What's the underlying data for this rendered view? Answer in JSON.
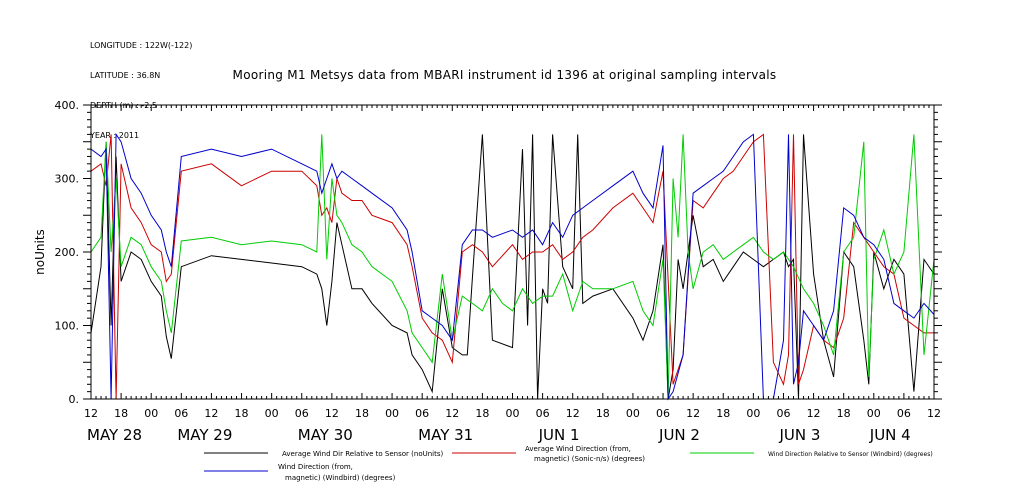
{
  "meta": {
    "longitude": "LONGITUDE : 122W(-122)",
    "latitude": "LATITUDE : 36.8N",
    "depth": "DEPTH (m) : -2.5",
    "year": "YEAR : 2011"
  },
  "chart_data": {
    "type": "line",
    "title": "Mooring M1 Metsys data from MBARI instrument id 1396 at original sampling intervals",
    "xlabel": "",
    "ylabel": "noUnits",
    "ylim": [
      0,
      400
    ],
    "yticks": [
      "0.",
      "100.",
      "200.",
      "300.",
      "400."
    ],
    "xlim": [
      0,
      168
    ],
    "x_hour_ticks": [
      "12",
      "18",
      "00",
      "06",
      "12",
      "18",
      "00",
      "06",
      "12",
      "18",
      "00",
      "06",
      "12",
      "18",
      "00",
      "06",
      "12",
      "18",
      "00",
      "06",
      "12",
      "18",
      "00",
      "06",
      "12",
      "18",
      "00",
      "06",
      "12"
    ],
    "date_labels": [
      {
        "text": "MAY 28",
        "x": 0
      },
      {
        "text": "MAY 29",
        "x": 18
      },
      {
        "text": "MAY 30",
        "x": 42
      },
      {
        "text": "MAY 31",
        "x": 66
      },
      {
        "text": "JUN  1",
        "x": 90
      },
      {
        "text": "JUN  2",
        "x": 114
      },
      {
        "text": "JUN  3",
        "x": 138
      },
      {
        "text": "JUN  4",
        "x": 156
      }
    ],
    "series": [
      {
        "name": "Average Wind Dir Relative to Sensor (noUnits)",
        "color": "#000000",
        "x": [
          0,
          2,
          3,
          4,
          5,
          6,
          8,
          10,
          12,
          14,
          15,
          16,
          18,
          24,
          30,
          36,
          42,
          45,
          46,
          47,
          48,
          49,
          50,
          52,
          54,
          56,
          60,
          63,
          64,
          66,
          68,
          70,
          72,
          74,
          75,
          76,
          78,
          80,
          84,
          86,
          87,
          88,
          89,
          90,
          91,
          92,
          94,
          96,
          97,
          98,
          100,
          104,
          108,
          110,
          112,
          114,
          115,
          116,
          117,
          118,
          120,
          122,
          124,
          126,
          128,
          130,
          132,
          134,
          136,
          138,
          139,
          140,
          141,
          142,
          144,
          146,
          148,
          150,
          152,
          154,
          155,
          156,
          158,
          160,
          162,
          164,
          166,
          168
        ],
        "y": [
          90,
          180,
          350,
          100,
          330,
          160,
          200,
          190,
          160,
          140,
          85,
          55,
          180,
          195,
          190,
          185,
          180,
          170,
          150,
          100,
          160,
          240,
          210,
          150,
          150,
          130,
          100,
          90,
          60,
          40,
          10,
          150,
          70,
          60,
          60,
          165,
          360,
          80,
          70,
          340,
          100,
          360,
          0,
          150,
          130,
          360,
          180,
          150,
          360,
          130,
          140,
          150,
          110,
          80,
          120,
          210,
          0,
          40,
          190,
          150,
          250,
          180,
          190,
          160,
          180,
          200,
          190,
          180,
          190,
          200,
          180,
          190,
          0,
          360,
          170,
          80,
          30,
          200,
          180,
          80,
          20,
          200,
          150,
          190,
          170,
          10,
          190,
          170
        ]
      },
      {
        "name": "Average Wind Direction (from, magnetic) (Sonic-n/s) (degrees)",
        "color": "#cc0000",
        "x": [
          0,
          2,
          3,
          4,
          5,
          6,
          8,
          10,
          12,
          14,
          15,
          16,
          18,
          24,
          30,
          36,
          42,
          45,
          46,
          47,
          48,
          49,
          50,
          52,
          54,
          56,
          60,
          63,
          64,
          66,
          68,
          70,
          72,
          74,
          76,
          78,
          80,
          84,
          86,
          88,
          90,
          92,
          94,
          96,
          98,
          100,
          104,
          108,
          110,
          112,
          114,
          116,
          118,
          120,
          122,
          124,
          126,
          128,
          130,
          132,
          134,
          136,
          138,
          139,
          140,
          141,
          142,
          144,
          146,
          148,
          150,
          152,
          154,
          156,
          158,
          160,
          162,
          164,
          166,
          168
        ],
        "y": [
          310,
          320,
          290,
          360,
          0,
          320,
          260,
          240,
          210,
          200,
          160,
          170,
          310,
          320,
          290,
          310,
          310,
          290,
          250,
          260,
          240,
          300,
          280,
          270,
          270,
          250,
          240,
          210,
          180,
          110,
          90,
          80,
          50,
          200,
          210,
          200,
          180,
          210,
          190,
          200,
          200,
          210,
          190,
          200,
          220,
          230,
          260,
          280,
          260,
          240,
          310,
          20,
          60,
          270,
          260,
          280,
          300,
          310,
          330,
          350,
          360,
          50,
          20,
          60,
          360,
          20,
          40,
          100,
          80,
          70,
          110,
          240,
          220,
          200,
          180,
          170,
          110,
          100,
          90,
          90
        ]
      },
      {
        "name": "Wind Direction Relative to Sensor (Windbird) (degrees)",
        "color": "#00cc00",
        "x": [
          0,
          2,
          3,
          4,
          5,
          6,
          8,
          10,
          12,
          14,
          15,
          16,
          18,
          24,
          30,
          36,
          42,
          45,
          46,
          47,
          48,
          49,
          50,
          52,
          54,
          56,
          60,
          63,
          64,
          66,
          68,
          70,
          72,
          74,
          76,
          78,
          80,
          82,
          84,
          86,
          88,
          90,
          92,
          94,
          96,
          98,
          100,
          104,
          108,
          110,
          112,
          114,
          115,
          116,
          117,
          118,
          119,
          120,
          122,
          124,
          126,
          128,
          130,
          132,
          134,
          136,
          138,
          140,
          142,
          144,
          146,
          148,
          150,
          152,
          154,
          155,
          156,
          158,
          160,
          162,
          164,
          166,
          168
        ],
        "y": [
          200,
          220,
          350,
          200,
          300,
          180,
          220,
          210,
          180,
          160,
          120,
          90,
          215,
          220,
          210,
          215,
          210,
          200,
          360,
          190,
          300,
          250,
          240,
          210,
          200,
          180,
          160,
          120,
          90,
          70,
          50,
          170,
          80,
          140,
          130,
          120,
          150,
          130,
          120,
          150,
          130,
          140,
          140,
          170,
          120,
          160,
          150,
          150,
          160,
          120,
          100,
          190,
          0,
          300,
          220,
          360,
          200,
          150,
          200,
          210,
          190,
          200,
          210,
          220,
          200,
          190,
          200,
          180,
          150,
          130,
          100,
          60,
          200,
          220,
          350,
          30,
          190,
          230,
          170,
          200,
          360,
          60,
          190
        ]
      },
      {
        "name": "Wind Direction (from, magnetic) (Windbird) (degrees)",
        "color": "#0000cc",
        "x": [
          0,
          2,
          3,
          4,
          5,
          6,
          8,
          10,
          12,
          14,
          15,
          16,
          18,
          24,
          30,
          36,
          42,
          45,
          46,
          47,
          48,
          49,
          50,
          52,
          54,
          56,
          60,
          63,
          64,
          66,
          68,
          70,
          72,
          74,
          76,
          78,
          80,
          84,
          86,
          88,
          90,
          92,
          94,
          96,
          98,
          100,
          104,
          108,
          110,
          112,
          114,
          115,
          116,
          118,
          120,
          122,
          124,
          126,
          128,
          130,
          132,
          134,
          136,
          138,
          139,
          140,
          141,
          142,
          144,
          146,
          148,
          150,
          152,
          154,
          156,
          158,
          160,
          162,
          164,
          166,
          168
        ],
        "y": [
          340,
          330,
          340,
          0,
          360,
          350,
          300,
          280,
          250,
          230,
          200,
          180,
          330,
          340,
          330,
          340,
          320,
          310,
          280,
          300,
          320,
          300,
          310,
          300,
          290,
          280,
          260,
          230,
          200,
          120,
          110,
          100,
          80,
          210,
          230,
          230,
          220,
          230,
          220,
          230,
          210,
          240,
          220,
          250,
          260,
          270,
          290,
          310,
          280,
          260,
          345,
          0,
          10,
          60,
          280,
          290,
          300,
          310,
          330,
          350,
          360,
          0,
          0,
          80,
          360,
          20,
          50,
          120,
          100,
          80,
          120,
          260,
          250,
          220,
          210,
          190,
          130,
          120,
          110,
          130,
          115
        ]
      }
    ]
  },
  "legend": {
    "black_label": "Average Wind Dir Relative to Sensor (noUnits)",
    "red_label_1": "Average Wind Direction (from,",
    "red_label_2": "magnetic) (Sonic-n/s) (degrees)",
    "green_label": "Wind Direction Relative to Sensor (Windbird) (degrees)",
    "blue_label_1": "Wind Direction (from,",
    "blue_label_2": "magnetic) (Windbird) (degrees)"
  }
}
